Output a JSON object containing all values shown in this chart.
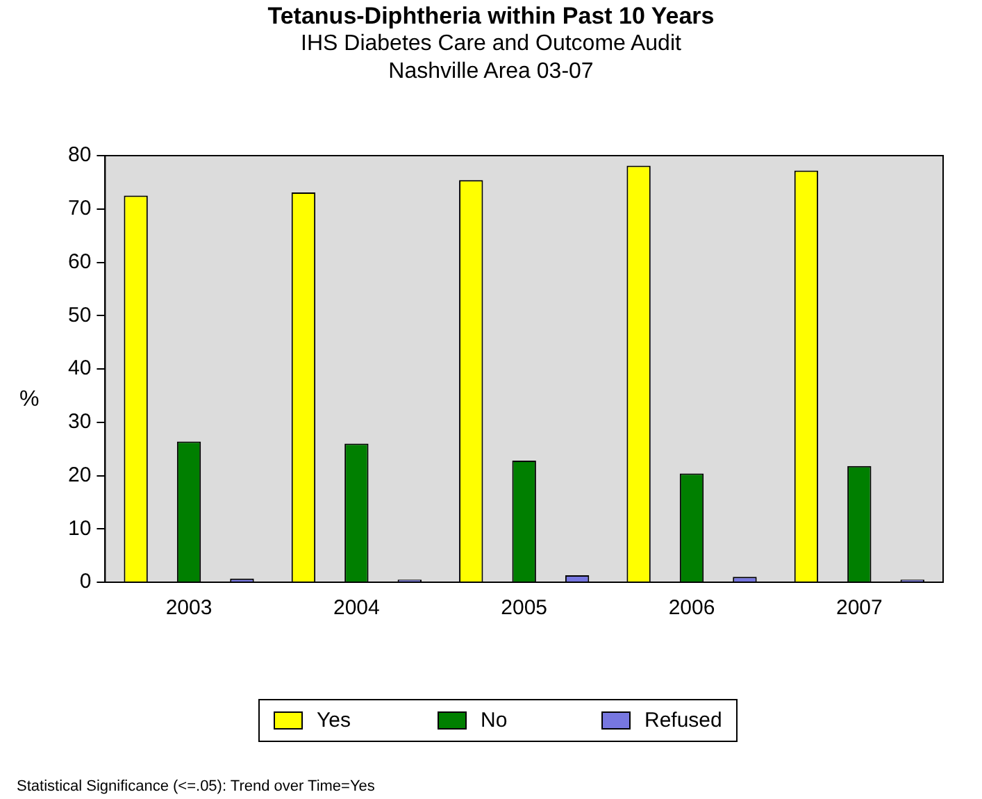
{
  "chart_data": {
    "type": "bar",
    "title": "Tetanus-Diphtheria within Past 10 Years",
    "subtitle": "IHS Diabetes Care and Outcome Audit\nNashville Area 03-07",
    "ylabel": "%",
    "categories": [
      "2003",
      "2004",
      "2005",
      "2006",
      "2007"
    ],
    "series": [
      {
        "name": "Yes",
        "color": "#ffff00",
        "values": [
          72.5,
          73.1,
          75.4,
          78.1,
          77.2
        ]
      },
      {
        "name": "No",
        "color": "#007f00",
        "values": [
          26.4,
          26.0,
          22.8,
          20.4,
          21.8
        ]
      },
      {
        "name": "Refused",
        "color": "#7777e0",
        "values": [
          0.7,
          0.5,
          1.3,
          1.0,
          0.5
        ]
      }
    ],
    "ylim": [
      0,
      80
    ],
    "yticks": [
      0,
      10,
      20,
      30,
      40,
      50,
      60,
      70,
      80
    ],
    "grid": false,
    "legend": "bottom",
    "annotations": [
      "Statistical Significance (<=.05): Trend over Time=Yes"
    ]
  }
}
